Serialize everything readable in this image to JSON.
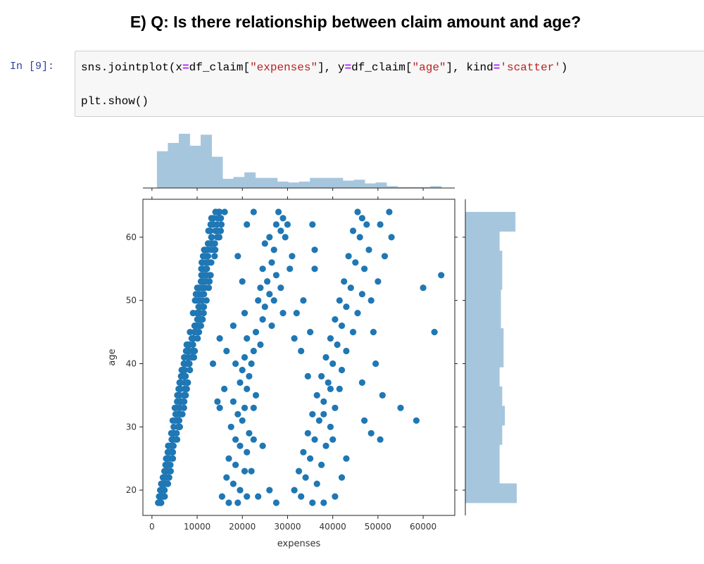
{
  "heading": "E) Q: Is there relationship between claim amount and age?",
  "cell": {
    "prompt": "In [9]:",
    "line1": [
      {
        "t": "sns.jointplot(x",
        "c": "plain"
      },
      {
        "t": "=",
        "c": "op"
      },
      {
        "t": "df_claim[",
        "c": "plain"
      },
      {
        "t": "\"expenses\"",
        "c": "str"
      },
      {
        "t": "], y",
        "c": "plain"
      },
      {
        "t": "=",
        "c": "op"
      },
      {
        "t": "df_claim[",
        "c": "plain"
      },
      {
        "t": "\"age\"",
        "c": "str"
      },
      {
        "t": "], kind",
        "c": "plain"
      },
      {
        "t": "=",
        "c": "op"
      },
      {
        "t": "'scatter'",
        "c": "str"
      },
      {
        "t": ")",
        "c": "plain"
      }
    ],
    "line2": "plt.show()"
  },
  "colors": {
    "point": "#1f77b4",
    "hist": "#a6c6dd",
    "prompt": "#303f9f",
    "string": "#ba2121",
    "operator": "#aa22ff"
  },
  "chart_data": {
    "type": "scatter",
    "xlabel": "expenses",
    "ylabel": "age",
    "xlim": [
      -2000,
      67000
    ],
    "ylim": [
      16,
      66
    ],
    "xticks": [
      0,
      10000,
      20000,
      30000,
      40000,
      50000,
      60000
    ],
    "yticks": [
      20,
      30,
      40,
      50,
      60
    ],
    "band_main": {
      "age_min": 18,
      "age_max": 64,
      "low_at_18": 1200,
      "low_at_64": 13000,
      "width_at_18": 1500,
      "width_at_64": 3200
    },
    "points": [
      [
        28000,
        64
      ],
      [
        29000,
        63
      ],
      [
        27500,
        62
      ],
      [
        26000,
        60
      ],
      [
        28500,
        61
      ],
      [
        30000,
        62
      ],
      [
        25000,
        59
      ],
      [
        29500,
        60
      ],
      [
        31000,
        57
      ],
      [
        27000,
        58
      ],
      [
        24500,
        55
      ],
      [
        26500,
        56
      ],
      [
        25500,
        53
      ],
      [
        27500,
        54
      ],
      [
        24000,
        52
      ],
      [
        26000,
        51
      ],
      [
        28500,
        52
      ],
      [
        23500,
        50
      ],
      [
        25000,
        49
      ],
      [
        27000,
        50
      ],
      [
        29000,
        48
      ],
      [
        24500,
        47
      ],
      [
        26500,
        46
      ],
      [
        23000,
        45
      ],
      [
        21000,
        44
      ],
      [
        22500,
        42
      ],
      [
        24000,
        43
      ],
      [
        20500,
        41
      ],
      [
        22000,
        40
      ],
      [
        18500,
        40
      ],
      [
        20000,
        39
      ],
      [
        21500,
        38
      ],
      [
        19500,
        37
      ],
      [
        21000,
        36
      ],
      [
        23000,
        35
      ],
      [
        18000,
        34
      ],
      [
        20500,
        33
      ],
      [
        22500,
        33
      ],
      [
        19000,
        32
      ],
      [
        17500,
        30
      ],
      [
        20000,
        31
      ],
      [
        21500,
        29
      ],
      [
        18500,
        28
      ],
      [
        19500,
        27
      ],
      [
        21000,
        26
      ],
      [
        17000,
        25
      ],
      [
        18500,
        24
      ],
      [
        20500,
        23
      ],
      [
        22000,
        23
      ],
      [
        16500,
        22
      ],
      [
        18000,
        21
      ],
      [
        19500,
        20
      ],
      [
        21000,
        19
      ],
      [
        17000,
        18
      ],
      [
        19000,
        18
      ],
      [
        15500,
        19
      ],
      [
        23500,
        19
      ],
      [
        26000,
        20
      ],
      [
        27500,
        18
      ],
      [
        22500,
        28
      ],
      [
        24500,
        27
      ],
      [
        15000,
        33
      ],
      [
        14500,
        34
      ],
      [
        16000,
        36
      ],
      [
        13500,
        40
      ],
      [
        15000,
        44
      ],
      [
        16500,
        42
      ],
      [
        18000,
        46
      ],
      [
        20500,
        48
      ],
      [
        20000,
        53
      ],
      [
        19000,
        57
      ],
      [
        21000,
        62
      ],
      [
        22500,
        64
      ],
      [
        45500,
        64
      ],
      [
        46500,
        63
      ],
      [
        47500,
        62
      ],
      [
        44500,
        61
      ],
      [
        46000,
        60
      ],
      [
        48000,
        58
      ],
      [
        43500,
        57
      ],
      [
        45000,
        56
      ],
      [
        47000,
        55
      ],
      [
        42500,
        53
      ],
      [
        44000,
        52
      ],
      [
        46500,
        51
      ],
      [
        41500,
        50
      ],
      [
        43000,
        49
      ],
      [
        45500,
        48
      ],
      [
        40500,
        47
      ],
      [
        42000,
        46
      ],
      [
        44500,
        45
      ],
      [
        39500,
        44
      ],
      [
        41000,
        43
      ],
      [
        43000,
        42
      ],
      [
        38500,
        41
      ],
      [
        40000,
        40
      ],
      [
        42000,
        39
      ],
      [
        37500,
        38
      ],
      [
        39000,
        37
      ],
      [
        41500,
        36
      ],
      [
        46500,
        37
      ],
      [
        36500,
        35
      ],
      [
        38000,
        34
      ],
      [
        40500,
        33
      ],
      [
        35500,
        32
      ],
      [
        37000,
        31
      ],
      [
        39500,
        30
      ],
      [
        34500,
        29
      ],
      [
        36000,
        28
      ],
      [
        38500,
        27
      ],
      [
        33500,
        26
      ],
      [
        35000,
        25
      ],
      [
        37500,
        24
      ],
      [
        32500,
        23
      ],
      [
        34000,
        22
      ],
      [
        36500,
        21
      ],
      [
        31500,
        20
      ],
      [
        33000,
        19
      ],
      [
        35500,
        18
      ],
      [
        38000,
        18
      ],
      [
        40500,
        19
      ],
      [
        42000,
        22
      ],
      [
        43000,
        25
      ],
      [
        40000,
        28
      ],
      [
        38000,
        32
      ],
      [
        39500,
        36
      ],
      [
        47000,
        31
      ],
      [
        48500,
        29
      ],
      [
        50500,
        28
      ],
      [
        51000,
        35
      ],
      [
        49500,
        40
      ],
      [
        49000,
        45
      ],
      [
        48500,
        50
      ],
      [
        50000,
        53
      ],
      [
        51500,
        57
      ],
      [
        53000,
        60
      ],
      [
        52500,
        64
      ],
      [
        50500,
        62
      ],
      [
        55000,
        33
      ],
      [
        58500,
        31
      ],
      [
        60000,
        52
      ],
      [
        62500,
        45
      ],
      [
        64000,
        54
      ],
      [
        36000,
        55
      ],
      [
        35500,
        62
      ],
      [
        35000,
        45
      ],
      [
        33000,
        42
      ],
      [
        31500,
        44
      ],
      [
        34500,
        38
      ],
      [
        33500,
        50
      ],
      [
        30500,
        55
      ],
      [
        32000,
        48
      ],
      [
        36000,
        58
      ]
    ]
  }
}
